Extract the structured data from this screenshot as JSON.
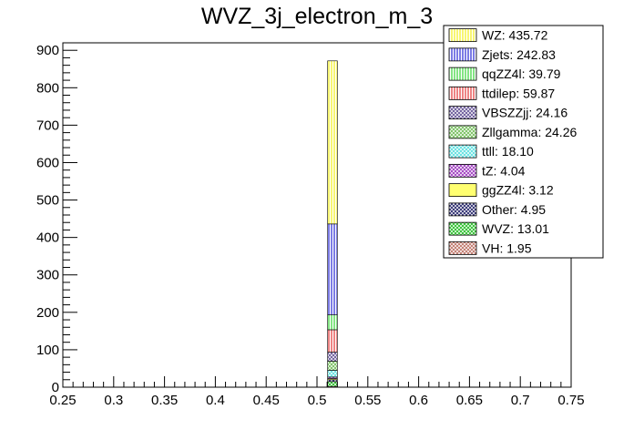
{
  "chart_data": {
    "type": "bar",
    "stacked": true,
    "title": "WVZ_3j_electron_m_3",
    "xlabel": "",
    "ylabel": "",
    "xlim": [
      0.25,
      0.75
    ],
    "ylim": [
      0,
      920
    ],
    "x_ticks": [
      "0.25",
      "0.3",
      "0.35",
      "0.4",
      "0.45",
      "0.5",
      "0.55",
      "0.6",
      "0.65",
      "0.7",
      "0.75"
    ],
    "y_ticks": [
      "0",
      "100",
      "200",
      "300",
      "400",
      "500",
      "600",
      "700",
      "800",
      "900"
    ],
    "bin": [
      0.51,
      0.52
    ],
    "legend_position": "top-right",
    "stack_order_bottom_to_top": [
      "VH",
      "WVZ",
      "Other",
      "ggZZ4l",
      "tZ",
      "ttll",
      "Zllgamma",
      "VBSZZjj",
      "ttdilep",
      "qqZZ4l",
      "Zjets",
      "WZ"
    ],
    "series": [
      {
        "name": "VH",
        "label": "VH: 1.95",
        "value": 1.95,
        "color": "#c0786c",
        "pattern": "cross"
      },
      {
        "name": "WVZ",
        "label": "WVZ: 13.01",
        "value": 13.01,
        "color": "#2ec02e",
        "pattern": "cross"
      },
      {
        "name": "Other",
        "label": "Other: 4.95",
        "value": 4.95,
        "color": "#2e2e70",
        "pattern": "cross"
      },
      {
        "name": "ggZZ4l",
        "label": "ggZZ4l: 3.12",
        "value": 3.12,
        "color": "#ffff70",
        "pattern": "solid"
      },
      {
        "name": "tZ",
        "label": "tZ: 4.04",
        "value": 4.04,
        "color": "#a040c0",
        "pattern": "cross"
      },
      {
        "name": "ttll",
        "label": "ttll: 18.10",
        "value": 18.1,
        "color": "#60e0e0",
        "pattern": "cross"
      },
      {
        "name": "Zllgamma",
        "label": "Zllgamma: 24.26",
        "value": 24.26,
        "color": "#78c060",
        "pattern": "cross"
      },
      {
        "name": "VBSZZjj",
        "label": "VBSZZjj: 24.16",
        "value": 24.16,
        "color": "#6a5a9a",
        "pattern": "cross"
      },
      {
        "name": "ttdilep",
        "label": "ttdilep: 59.87",
        "value": 59.87,
        "color": "#e02020",
        "pattern": "vlines"
      },
      {
        "name": "qqZZ4l",
        "label": "qqZZ4l: 39.79",
        "value": 39.79,
        "color": "#20d020",
        "pattern": "vlines"
      },
      {
        "name": "Zjets",
        "label": "Zjets: 242.83",
        "value": 242.83,
        "color": "#1010d0",
        "pattern": "vlines"
      },
      {
        "name": "WZ",
        "label": "WZ: 435.72",
        "value": 435.72,
        "color": "#f4f000",
        "pattern": "vlines"
      }
    ]
  }
}
